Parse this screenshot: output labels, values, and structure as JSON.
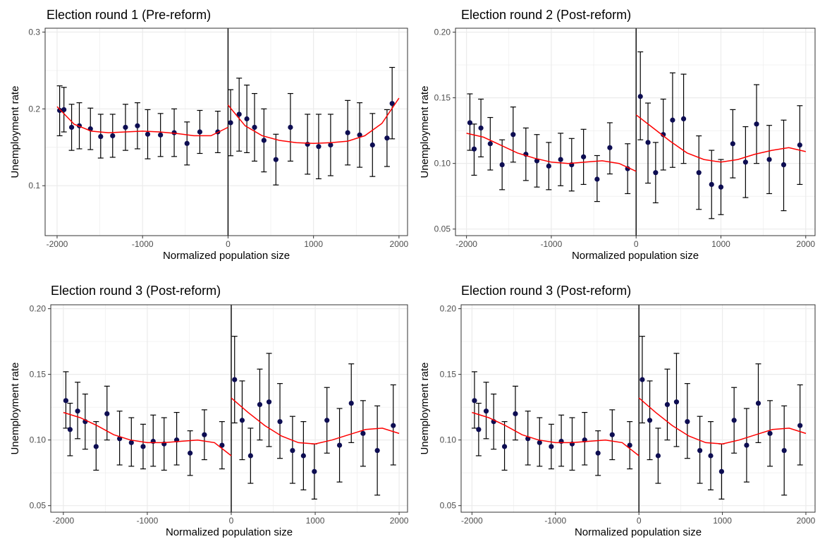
{
  "figure": {
    "colors": {
      "point": "#0d0d52",
      "fit": "#ff0000",
      "errorbar": "#000000",
      "grid": "#ebebeb",
      "border": "#333333",
      "cutoff": "#000000"
    }
  },
  "chart_data": [
    {
      "type": "scatter",
      "title": "Election round 1 (Pre-reform)",
      "xlabel": "Normalized population size",
      "ylabel": "Unemployment rate",
      "xlim": [
        -2140,
        2100
      ],
      "ylim": [
        0.035,
        0.305
      ],
      "xticks": [
        -2000,
        -1000,
        0,
        1000,
        2000
      ],
      "xtick_labels": [
        "-2000",
        "-1000",
        "0",
        "1000",
        "2000"
      ],
      "yticks": [
        0.1,
        0.2,
        0.3
      ],
      "ytick_labels": [
        "0.1",
        "0.2",
        "0.3"
      ],
      "grid": true,
      "cutoff_x": 0,
      "series": [
        {
          "type": "errorbar-points",
          "x": [
            -1970,
            -1920,
            -1830,
            -1740,
            -1610,
            -1490,
            -1350,
            -1200,
            -1060,
            -940,
            -790,
            -630,
            -480,
            -330,
            -120,
            30,
            130,
            220,
            310,
            420,
            560,
            730,
            930,
            1060,
            1200,
            1400,
            1540,
            1690,
            1860,
            1920
          ],
          "y": [
            0.198,
            0.199,
            0.176,
            0.178,
            0.174,
            0.164,
            0.165,
            0.176,
            0.178,
            0.167,
            0.166,
            0.169,
            0.155,
            0.17,
            0.17,
            0.182,
            0.193,
            0.187,
            0.176,
            0.159,
            0.134,
            0.176,
            0.154,
            0.151,
            0.153,
            0.169,
            0.166,
            0.153,
            0.162,
            0.207
          ],
          "low": [
            0.165,
            0.17,
            0.146,
            0.148,
            0.147,
            0.136,
            0.137,
            0.146,
            0.148,
            0.135,
            0.138,
            0.138,
            0.127,
            0.142,
            0.143,
            0.139,
            0.145,
            0.143,
            0.132,
            0.118,
            0.101,
            0.132,
            0.115,
            0.109,
            0.113,
            0.127,
            0.124,
            0.112,
            0.125,
            0.161
          ],
          "high": [
            0.23,
            0.228,
            0.206,
            0.208,
            0.201,
            0.193,
            0.193,
            0.206,
            0.208,
            0.199,
            0.194,
            0.2,
            0.183,
            0.198,
            0.197,
            0.225,
            0.24,
            0.231,
            0.22,
            0.2,
            0.167,
            0.22,
            0.193,
            0.193,
            0.193,
            0.211,
            0.208,
            0.194,
            0.199,
            0.254
          ]
        },
        {
          "type": "fit",
          "segment": "left",
          "x": [
            -2000,
            -1800,
            -1600,
            -1400,
            -1200,
            -1000,
            -800,
            -600,
            -400,
            -200,
            0
          ],
          "y": [
            0.203,
            0.18,
            0.171,
            0.169,
            0.17,
            0.171,
            0.17,
            0.168,
            0.165,
            0.165,
            0.176
          ]
        },
        {
          "type": "fit",
          "segment": "right",
          "x": [
            0,
            200,
            400,
            600,
            800,
            1000,
            1200,
            1400,
            1600,
            1800,
            2000
          ],
          "y": [
            0.205,
            0.178,
            0.165,
            0.159,
            0.156,
            0.155,
            0.156,
            0.158,
            0.165,
            0.181,
            0.214
          ]
        }
      ]
    },
    {
      "type": "scatter",
      "title": "Election round 2 (Post-reform)",
      "xlabel": "Normalized population size",
      "ylabel": "Unemployment rate",
      "xlim": [
        -2130,
        2110
      ],
      "ylim": [
        0.045,
        0.203
      ],
      "xticks": [
        -2000,
        -1000,
        0,
        1000,
        2000
      ],
      "xtick_labels": [
        "-2000",
        "-1000",
        "0",
        "1000",
        "2000"
      ],
      "yticks": [
        0.05,
        0.1,
        0.15,
        0.2
      ],
      "ytick_labels": [
        "0.05",
        "0.10",
        "0.15",
        "0.20"
      ],
      "grid": true,
      "cutoff_x": 0,
      "series": [
        {
          "type": "errorbar-points",
          "x": [
            -1960,
            -1910,
            -1830,
            -1720,
            -1580,
            -1450,
            -1300,
            -1170,
            -1030,
            -890,
            -760,
            -620,
            -460,
            -310,
            -100,
            50,
            140,
            230,
            320,
            430,
            560,
            740,
            890,
            1000,
            1140,
            1290,
            1420,
            1570,
            1740,
            1930
          ],
          "y": [
            0.131,
            0.111,
            0.127,
            0.115,
            0.099,
            0.122,
            0.107,
            0.102,
            0.098,
            0.103,
            0.099,
            0.105,
            0.088,
            0.112,
            0.096,
            0.151,
            0.116,
            0.093,
            0.122,
            0.133,
            0.134,
            0.093,
            0.084,
            0.082,
            0.115,
            0.101,
            0.13,
            0.103,
            0.099,
            0.114
          ],
          "low": [
            0.11,
            0.091,
            0.105,
            0.095,
            0.08,
            0.101,
            0.087,
            0.082,
            0.08,
            0.083,
            0.079,
            0.084,
            0.071,
            0.092,
            0.077,
            0.118,
            0.085,
            0.07,
            0.095,
            0.097,
            0.1,
            0.065,
            0.058,
            0.061,
            0.089,
            0.074,
            0.1,
            0.077,
            0.064,
            0.084
          ],
          "high": [
            0.153,
            0.13,
            0.149,
            0.135,
            0.118,
            0.143,
            0.127,
            0.122,
            0.116,
            0.123,
            0.119,
            0.126,
            0.106,
            0.131,
            0.115,
            0.185,
            0.146,
            0.116,
            0.149,
            0.169,
            0.168,
            0.121,
            0.11,
            0.103,
            0.141,
            0.128,
            0.16,
            0.129,
            0.133,
            0.144
          ]
        },
        {
          "type": "fit",
          "segment": "left",
          "x": [
            -2000,
            -1800,
            -1600,
            -1400,
            -1200,
            -1000,
            -800,
            -600,
            -400,
            -200,
            0
          ],
          "y": [
            0.123,
            0.12,
            0.114,
            0.108,
            0.104,
            0.101,
            0.1,
            0.101,
            0.102,
            0.1,
            0.094
          ]
        },
        {
          "type": "fit",
          "segment": "right",
          "x": [
            0,
            200,
            400,
            600,
            800,
            1000,
            1200,
            1400,
            1600,
            1800,
            2000
          ],
          "y": [
            0.137,
            0.127,
            0.117,
            0.108,
            0.103,
            0.101,
            0.103,
            0.107,
            0.11,
            0.112,
            0.109
          ]
        }
      ]
    },
    {
      "type": "scatter",
      "title": "Election round 3 (Post-reform)",
      "xlabel": "Normalized population size",
      "ylabel": "Unemployment rate",
      "xlim": [
        -2150,
        2100
      ],
      "ylim": [
        0.045,
        0.203
      ],
      "xticks": [
        -2000,
        -1000,
        0,
        1000,
        2000
      ],
      "xtick_labels": [
        "-2000",
        "-1000",
        "0",
        "1000",
        "2000"
      ],
      "yticks": [
        0.05,
        0.1,
        0.15,
        0.2
      ],
      "ytick_labels": [
        "0.05",
        "0.10",
        "0.15",
        "0.20"
      ],
      "grid": true,
      "cutoff_x": 0,
      "series": [
        {
          "type": "errorbar-points",
          "x": [
            -1970,
            -1920,
            -1830,
            -1740,
            -1610,
            -1480,
            -1330,
            -1190,
            -1050,
            -930,
            -800,
            -650,
            -490,
            -320,
            -110,
            40,
            130,
            230,
            340,
            450,
            580,
            730,
            860,
            990,
            1140,
            1290,
            1430,
            1570,
            1740,
            1930
          ],
          "y": [
            0.13,
            0.108,
            0.122,
            0.114,
            0.095,
            0.12,
            0.101,
            0.098,
            0.095,
            0.099,
            0.097,
            0.1,
            0.09,
            0.104,
            0.096,
            0.146,
            0.115,
            0.088,
            0.127,
            0.129,
            0.114,
            0.092,
            0.088,
            0.076,
            0.115,
            0.096,
            0.128,
            0.105,
            0.092,
            0.111
          ],
          "low": [
            0.109,
            0.088,
            0.101,
            0.093,
            0.077,
            0.1,
            0.081,
            0.08,
            0.078,
            0.08,
            0.077,
            0.081,
            0.073,
            0.085,
            0.078,
            0.113,
            0.085,
            0.067,
            0.1,
            0.095,
            0.086,
            0.067,
            0.062,
            0.055,
            0.09,
            0.068,
            0.098,
            0.08,
            0.058,
            0.081
          ],
          "high": [
            0.152,
            0.128,
            0.144,
            0.135,
            0.114,
            0.141,
            0.122,
            0.117,
            0.112,
            0.119,
            0.117,
            0.121,
            0.107,
            0.123,
            0.114,
            0.179,
            0.145,
            0.109,
            0.154,
            0.166,
            0.143,
            0.118,
            0.114,
            0.097,
            0.14,
            0.124,
            0.158,
            0.13,
            0.126,
            0.142
          ]
        },
        {
          "type": "fit",
          "segment": "left",
          "x": [
            -2000,
            -1800,
            -1600,
            -1400,
            -1200,
            -1000,
            -800,
            -600,
            -400,
            -200,
            0
          ],
          "y": [
            0.121,
            0.117,
            0.111,
            0.104,
            0.1,
            0.098,
            0.098,
            0.099,
            0.1,
            0.098,
            0.088
          ]
        },
        {
          "type": "fit",
          "segment": "right",
          "x": [
            0,
            200,
            400,
            600,
            800,
            1000,
            1200,
            1400,
            1600,
            1800,
            2000
          ],
          "y": [
            0.132,
            0.121,
            0.111,
            0.103,
            0.098,
            0.097,
            0.1,
            0.104,
            0.108,
            0.109,
            0.105
          ]
        }
      ]
    },
    {
      "type": "scatter",
      "title": "Election round 3 (Post-reform)",
      "xlabel": "Normalized population size",
      "ylabel": "Unemployment rate",
      "xlim": [
        -2130,
        2110
      ],
      "ylim": [
        0.045,
        0.203
      ],
      "xticks": [
        -2000,
        -1000,
        0,
        1000,
        2000
      ],
      "xtick_labels": [
        "-2000",
        "-1000",
        "0",
        "1000",
        "2000"
      ],
      "yticks": [
        0.05,
        0.1,
        0.15,
        0.2
      ],
      "ytick_labels": [
        "0.05",
        "0.10",
        "0.15",
        "0.20"
      ],
      "grid": true,
      "cutoff_x": 0,
      "series": [
        {
          "type": "errorbar-points",
          "x": [
            -1970,
            -1920,
            -1830,
            -1740,
            -1610,
            -1480,
            -1330,
            -1190,
            -1050,
            -930,
            -800,
            -650,
            -490,
            -320,
            -110,
            40,
            130,
            230,
            340,
            450,
            580,
            730,
            860,
            990,
            1140,
            1290,
            1430,
            1570,
            1740,
            1930
          ],
          "y": [
            0.13,
            0.108,
            0.122,
            0.114,
            0.095,
            0.12,
            0.101,
            0.098,
            0.095,
            0.099,
            0.097,
            0.1,
            0.09,
            0.104,
            0.096,
            0.146,
            0.115,
            0.088,
            0.127,
            0.129,
            0.114,
            0.092,
            0.088,
            0.076,
            0.115,
            0.096,
            0.128,
            0.105,
            0.092,
            0.111
          ],
          "low": [
            0.109,
            0.088,
            0.101,
            0.093,
            0.077,
            0.1,
            0.081,
            0.08,
            0.078,
            0.08,
            0.077,
            0.081,
            0.073,
            0.085,
            0.078,
            0.113,
            0.085,
            0.067,
            0.1,
            0.095,
            0.086,
            0.067,
            0.062,
            0.055,
            0.09,
            0.068,
            0.098,
            0.08,
            0.058,
            0.081
          ],
          "high": [
            0.152,
            0.128,
            0.144,
            0.135,
            0.114,
            0.141,
            0.122,
            0.117,
            0.112,
            0.119,
            0.117,
            0.121,
            0.107,
            0.123,
            0.114,
            0.179,
            0.145,
            0.109,
            0.154,
            0.166,
            0.143,
            0.118,
            0.114,
            0.097,
            0.14,
            0.124,
            0.158,
            0.13,
            0.126,
            0.142
          ]
        },
        {
          "type": "fit",
          "segment": "left",
          "x": [
            -2000,
            -1800,
            -1600,
            -1400,
            -1200,
            -1000,
            -800,
            -600,
            -400,
            -200,
            0
          ],
          "y": [
            0.121,
            0.117,
            0.111,
            0.104,
            0.1,
            0.098,
            0.098,
            0.099,
            0.1,
            0.098,
            0.088
          ]
        },
        {
          "type": "fit",
          "segment": "right",
          "x": [
            0,
            200,
            400,
            600,
            800,
            1000,
            1200,
            1400,
            1600,
            1800,
            2000
          ],
          "y": [
            0.132,
            0.121,
            0.111,
            0.103,
            0.098,
            0.097,
            0.1,
            0.104,
            0.108,
            0.109,
            0.105
          ]
        }
      ]
    }
  ]
}
